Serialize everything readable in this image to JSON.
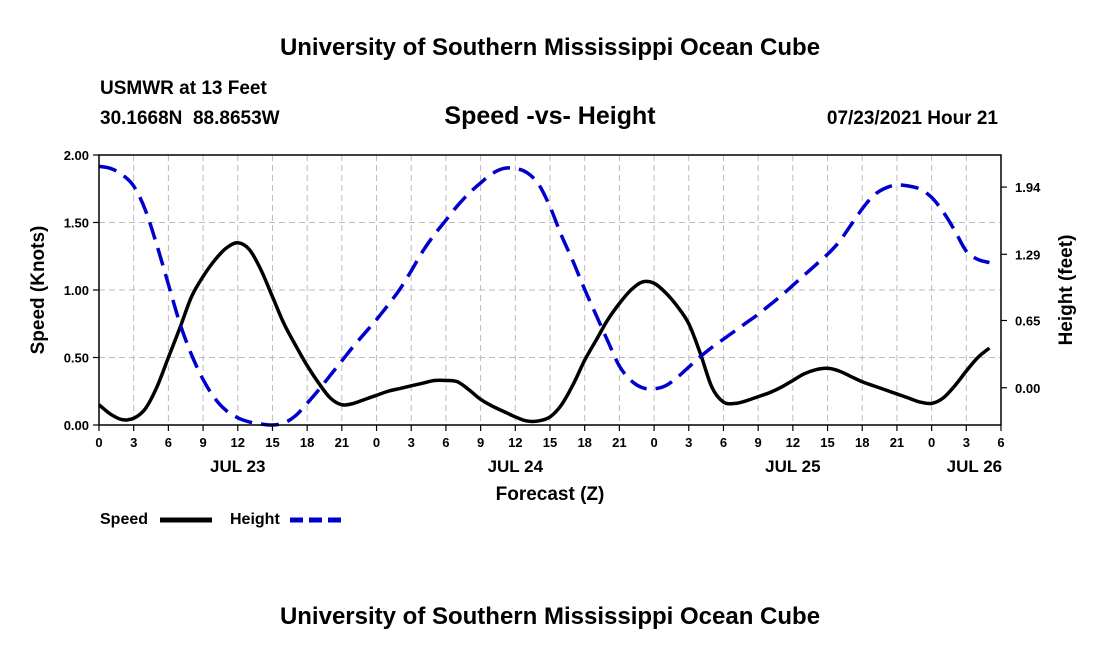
{
  "page": {
    "top_title": "University of Southern Mississippi Ocean Cube",
    "bottom_title": "University of Southern Mississippi Ocean Cube",
    "station_line": "USMWR at 13 Feet",
    "coords_line": "30.1668N  88.8653W",
    "datetime_line": "07/23/2021 Hour 21"
  },
  "colors": {
    "speed": "#000000",
    "height": "#0000cc",
    "grid": "#bbbbbb",
    "axis": "#000000"
  },
  "chart_data": {
    "type": "line",
    "title": "Speed -vs- Height",
    "xlabel": "Forecast (Z)",
    "ylabel": "Speed (Knots)",
    "y2label": "Height (feet)",
    "xlim": [
      0,
      78
    ],
    "ylim": [
      0,
      2.0
    ],
    "y2lim": [
      -0.36,
      2.25
    ],
    "x_tick_values": [
      0,
      3,
      6,
      9,
      12,
      15,
      18,
      21,
      24,
      27,
      30,
      33,
      36,
      39,
      42,
      45,
      48,
      51,
      54,
      57,
      60,
      63,
      66,
      69,
      72,
      75,
      78
    ],
    "x_tick_labels": [
      "0",
      "3",
      "6",
      "9",
      "12",
      "15",
      "18",
      "21",
      "0",
      "3",
      "6",
      "9",
      "12",
      "15",
      "18",
      "21",
      "0",
      "3",
      "6",
      "9",
      "12",
      "15",
      "18",
      "21",
      "0",
      "3",
      "6"
    ],
    "date_labels": [
      {
        "label": "JUL 23",
        "x": 12
      },
      {
        "label": "JUL 24",
        "x": 36
      },
      {
        "label": "JUL 25",
        "x": 60
      },
      {
        "label": "JUL 26",
        "x": 75.7
      }
    ],
    "y_ticks": [
      0,
      0.5,
      1.0,
      1.5,
      2.0
    ],
    "y_tick_labels": [
      "0.00",
      "0.50",
      "1.00",
      "1.50",
      "2.00"
    ],
    "y2_ticks": [
      0,
      0.65,
      1.29,
      1.94
    ],
    "y2_tick_labels": [
      "0.00",
      "0.65",
      "1.29",
      "1.94"
    ],
    "grid": true,
    "legend_position": "bottom-left",
    "series": [
      {
        "name": "Speed",
        "axis": "left",
        "style": "solid",
        "points": [
          [
            0,
            0.15
          ],
          [
            1,
            0.08
          ],
          [
            2,
            0.04
          ],
          [
            3,
            0.05
          ],
          [
            4,
            0.12
          ],
          [
            5,
            0.28
          ],
          [
            6,
            0.5
          ],
          [
            7,
            0.72
          ],
          [
            8,
            0.95
          ],
          [
            9,
            1.1
          ],
          [
            10,
            1.22
          ],
          [
            11,
            1.31
          ],
          [
            12,
            1.35
          ],
          [
            13,
            1.3
          ],
          [
            14,
            1.15
          ],
          [
            15,
            0.95
          ],
          [
            16,
            0.75
          ],
          [
            17,
            0.59
          ],
          [
            18,
            0.44
          ],
          [
            19,
            0.31
          ],
          [
            20,
            0.2
          ],
          [
            21,
            0.15
          ],
          [
            22,
            0.16
          ],
          [
            23,
            0.19
          ],
          [
            24,
            0.22
          ],
          [
            25,
            0.25
          ],
          [
            26,
            0.27
          ],
          [
            27,
            0.29
          ],
          [
            28,
            0.31
          ],
          [
            29,
            0.33
          ],
          [
            30,
            0.33
          ],
          [
            31,
            0.32
          ],
          [
            32,
            0.26
          ],
          [
            33,
            0.19
          ],
          [
            34,
            0.14
          ],
          [
            35,
            0.1
          ],
          [
            36,
            0.06
          ],
          [
            37,
            0.03
          ],
          [
            38,
            0.03
          ],
          [
            39,
            0.06
          ],
          [
            40,
            0.15
          ],
          [
            41,
            0.3
          ],
          [
            42,
            0.48
          ],
          [
            43,
            0.63
          ],
          [
            44,
            0.78
          ],
          [
            45,
            0.9
          ],
          [
            46,
            1.0
          ],
          [
            47,
            1.06
          ],
          [
            48,
            1.05
          ],
          [
            49,
            0.98
          ],
          [
            50,
            0.88
          ],
          [
            51,
            0.75
          ],
          [
            52,
            0.53
          ],
          [
            53,
            0.28
          ],
          [
            54,
            0.17
          ],
          [
            55,
            0.16
          ],
          [
            56,
            0.18
          ],
          [
            57,
            0.21
          ],
          [
            58,
            0.24
          ],
          [
            59,
            0.28
          ],
          [
            60,
            0.33
          ],
          [
            61,
            0.38
          ],
          [
            62,
            0.41
          ],
          [
            63,
            0.42
          ],
          [
            64,
            0.4
          ],
          [
            65,
            0.36
          ],
          [
            66,
            0.32
          ],
          [
            67,
            0.29
          ],
          [
            68,
            0.26
          ],
          [
            69,
            0.23
          ],
          [
            70,
            0.2
          ],
          [
            71,
            0.17
          ],
          [
            72,
            0.16
          ],
          [
            73,
            0.2
          ],
          [
            74,
            0.29
          ],
          [
            75,
            0.4
          ],
          [
            76,
            0.5
          ],
          [
            77,
            0.57
          ]
        ]
      },
      {
        "name": "Height",
        "axis": "right",
        "style": "dashed",
        "points": [
          [
            0,
            2.14
          ],
          [
            1,
            2.12
          ],
          [
            2,
            2.06
          ],
          [
            3,
            1.95
          ],
          [
            4,
            1.72
          ],
          [
            5,
            1.38
          ],
          [
            6,
            1.0
          ],
          [
            7,
            0.62
          ],
          [
            8,
            0.32
          ],
          [
            9,
            0.08
          ],
          [
            10,
            -0.1
          ],
          [
            11,
            -0.22
          ],
          [
            12,
            -0.29
          ],
          [
            13,
            -0.33
          ],
          [
            14,
            -0.35
          ],
          [
            15,
            -0.36
          ],
          [
            16,
            -0.34
          ],
          [
            17,
            -0.27
          ],
          [
            18,
            -0.15
          ],
          [
            19,
            -0.02
          ],
          [
            20,
            0.12
          ],
          [
            21,
            0.26
          ],
          [
            22,
            0.4
          ],
          [
            23,
            0.53
          ],
          [
            24,
            0.66
          ],
          [
            25,
            0.8
          ],
          [
            26,
            0.95
          ],
          [
            27,
            1.13
          ],
          [
            28,
            1.32
          ],
          [
            29,
            1.48
          ],
          [
            30,
            1.62
          ],
          [
            31,
            1.76
          ],
          [
            32,
            1.88
          ],
          [
            33,
            1.98
          ],
          [
            34,
            2.07
          ],
          [
            35,
            2.12
          ],
          [
            36,
            2.12
          ],
          [
            37,
            2.08
          ],
          [
            38,
            1.97
          ],
          [
            39,
            1.75
          ],
          [
            40,
            1.47
          ],
          [
            41,
            1.22
          ],
          [
            42,
            0.95
          ],
          [
            43,
            0.7
          ],
          [
            44,
            0.45
          ],
          [
            45,
            0.21
          ],
          [
            46,
            0.07
          ],
          [
            47,
            0.0
          ],
          [
            48,
            -0.01
          ],
          [
            49,
            0.02
          ],
          [
            50,
            0.1
          ],
          [
            51,
            0.2
          ],
          [
            52,
            0.3
          ],
          [
            53,
            0.39
          ],
          [
            54,
            0.47
          ],
          [
            55,
            0.55
          ],
          [
            56,
            0.63
          ],
          [
            57,
            0.71
          ],
          [
            58,
            0.8
          ],
          [
            59,
            0.89
          ],
          [
            60,
            0.99
          ],
          [
            61,
            1.09
          ],
          [
            62,
            1.19
          ],
          [
            63,
            1.29
          ],
          [
            64,
            1.41
          ],
          [
            65,
            1.57
          ],
          [
            66,
            1.73
          ],
          [
            67,
            1.86
          ],
          [
            68,
            1.93
          ],
          [
            69,
            1.96
          ],
          [
            70,
            1.95
          ],
          [
            71,
            1.92
          ],
          [
            72,
            1.84
          ],
          [
            73,
            1.7
          ],
          [
            74,
            1.52
          ],
          [
            75,
            1.32
          ],
          [
            76,
            1.24
          ],
          [
            77,
            1.21
          ]
        ]
      }
    ]
  }
}
